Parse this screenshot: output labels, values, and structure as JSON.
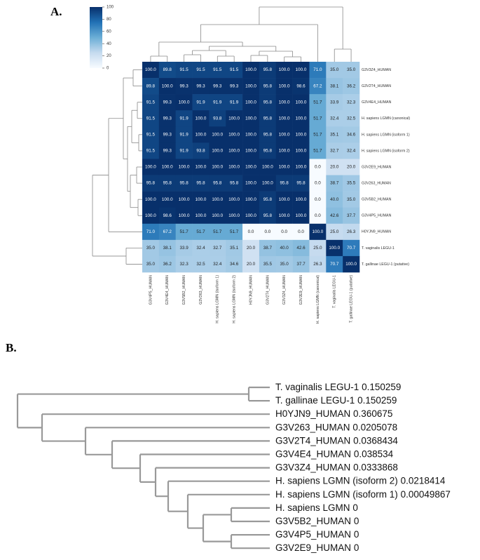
{
  "chart_data": [
    {
      "type": "heatmap",
      "panel": "A.",
      "rows": [
        "G3V3Z4_HUMAN",
        "G3V2T4_HUMAN",
        "G3V4E4_HUMAN",
        "H. sapiens LGMN (canonical)",
        "H. sapiens LGMN (isoform 1)",
        "H. sapiens LGMN (isoform 2)",
        "G3V2E9_HUMAN",
        "G3V263_HUMAN",
        "G3V5B2_HUMAN",
        "G3V4P5_HUMAN",
        "H0YJN9_HUMAN",
        "T. vaginalis LEGU-1",
        "T. gallinae LEGU-1 (putative)"
      ],
      "categories": [
        "G3V4P5_HUMAN",
        "G3V4E4_HUMAN",
        "G3V5B2_HUMAN",
        "G3V263_HUMAN",
        "H. sapiens LGMN (isoform 1)",
        "H. sapiens LGMN (isoform 2)",
        "H0YJN9_HUMAN",
        "G3V2T4_HUMAN",
        "G3V3Z4_HUMAN",
        "G3V2E9_HUMAN",
        "H. sapiens LGMN (canonical)",
        "T. vaginalis LEGU-1",
        "T. gallinae LEGU-1 (putative)"
      ],
      "values": [
        [
          100,
          89.8,
          91.5,
          91.5,
          91.5,
          91.5,
          100,
          95.8,
          100,
          100,
          71,
          35,
          35
        ],
        [
          89.8,
          100,
          99.3,
          99.3,
          99.3,
          99.3,
          100,
          95.8,
          100,
          98.6,
          67.2,
          38.1,
          36.2
        ],
        [
          91.5,
          99.3,
          100,
          91.9,
          91.9,
          91.9,
          100,
          95.8,
          100,
          100,
          51.7,
          33.9,
          32.3
        ],
        [
          91.5,
          99.3,
          91.9,
          100,
          93.8,
          100,
          100,
          95.8,
          100,
          100,
          51.7,
          32.4,
          32.5
        ],
        [
          91.5,
          99.3,
          91.9,
          100,
          100,
          100,
          100,
          95.8,
          100,
          100,
          51.7,
          35.1,
          34.6
        ],
        [
          91.5,
          99.3,
          91.9,
          93.8,
          100,
          100,
          100,
          95.8,
          100,
          100,
          51.7,
          32.7,
          32.4
        ],
        [
          100,
          100,
          100,
          100,
          100,
          100,
          100,
          100,
          100,
          100,
          0,
          20,
          20
        ],
        [
          95.8,
          95.8,
          95.8,
          95.8,
          95.8,
          95.8,
          100,
          100,
          95.8,
          95.8,
          0,
          38.7,
          35.5
        ],
        [
          100,
          100,
          100,
          100,
          100,
          100,
          100,
          95.8,
          100,
          100,
          0,
          40,
          35
        ],
        [
          100,
          98.6,
          100,
          100,
          100,
          100,
          100,
          95.8,
          100,
          100,
          0,
          42.6,
          37.7
        ],
        [
          71,
          67.2,
          51.7,
          51.7,
          51.7,
          51.7,
          0,
          0,
          0,
          0,
          100,
          25,
          26.3
        ],
        [
          35,
          38.1,
          33.9,
          32.4,
          32.7,
          35.1,
          20,
          38.7,
          40,
          42.6,
          25,
          100,
          70.7
        ],
        [
          35,
          36.2,
          32.3,
          32.5,
          32.4,
          34.6,
          20,
          35.5,
          35,
          37.7,
          26.3,
          70.7,
          100
        ]
      ],
      "value_labels": [
        [
          "100.0",
          "89.8",
          "91.5",
          "91.5",
          "91.5",
          "91.5",
          "100.0",
          "95.8",
          "100.0",
          "100.0",
          "71.0",
          "35.0",
          "35.0"
        ],
        [
          "89.8",
          "100.0",
          "99.3",
          "99.3",
          "99.3",
          "99.3",
          "100.0",
          "95.8",
          "100.0",
          "98.6",
          "67.2",
          "38.1",
          "36.2"
        ],
        [
          "91.5",
          "99.3",
          "100.0",
          "91.9",
          "91.9",
          "91.9",
          "100.0",
          "95.8",
          "100.0",
          "100.0",
          "51.7",
          "33.9",
          "32.3"
        ],
        [
          "91.5",
          "99.3",
          "91.9",
          "100.0",
          "93.8",
          "100.0",
          "100.0",
          "95.8",
          "100.0",
          "100.0",
          "51.7",
          "32.4",
          "32.5"
        ],
        [
          "91.5",
          "99.3",
          "91.9",
          "100.0",
          "100.0",
          "100.0",
          "100.0",
          "95.8",
          "100.0",
          "100.0",
          "51.7",
          "35.1",
          "34.6"
        ],
        [
          "91.5",
          "99.3",
          "91.9",
          "93.8",
          "100.0",
          "100.0",
          "100.0",
          "95.8",
          "100.0",
          "100.0",
          "51.7",
          "32.7",
          "32.4"
        ],
        [
          "100.0",
          "100.0",
          "100.0",
          "100.0",
          "100.0",
          "100.0",
          "100.0",
          "100.0",
          "100.0",
          "100.0",
          "0.0",
          "20.0",
          "20.0"
        ],
        [
          "95.8",
          "95.8",
          "95.8",
          "95.8",
          "95.8",
          "95.8",
          "100.0",
          "100.0",
          "95.8",
          "95.8",
          "0.0",
          "38.7",
          "35.5"
        ],
        [
          "100.0",
          "100.0",
          "100.0",
          "100.0",
          "100.0",
          "100.0",
          "100.0",
          "95.8",
          "100.0",
          "100.0",
          "0.0",
          "40.0",
          "35.0"
        ],
        [
          "100.0",
          "98.6",
          "100.0",
          "100.0",
          "100.0",
          "100.0",
          "100.0",
          "95.8",
          "100.0",
          "100.0",
          "0.0",
          "42.6",
          "37.7"
        ],
        [
          "71.0",
          "67.2",
          "51.7",
          "51.7",
          "51.7",
          "51.7",
          "0.0",
          "0.0",
          "0.0",
          "0.0",
          "100.0",
          "25.0",
          "26.3"
        ],
        [
          "35.0",
          "38.1",
          "33.9",
          "32.4",
          "32.7",
          "35.1",
          "20.0",
          "38.7",
          "40.0",
          "42.6",
          "25.0",
          "100.0",
          "70.7"
        ],
        [
          "35.0",
          "36.2",
          "32.3",
          "32.5",
          "32.4",
          "34.6",
          "20.0",
          "35.5",
          "35.0",
          "37.7",
          "26.3",
          "70.7",
          "100.0"
        ]
      ],
      "colorscale": [
        "#f7fbff",
        "#c6dbef",
        "#6baed6",
        "#2171b5",
        "#08306b"
      ],
      "zlim": [
        0,
        100
      ],
      "zticks": [
        0,
        20,
        40,
        60,
        80,
        100
      ]
    },
    {
      "type": "tree",
      "panel": "B.",
      "labels": [
        "T. vaginalis LEGU-1",
        "T. gallinae LEGU-1",
        "H0YJN9_HUMAN",
        "G3V263_HUMAN",
        "G3V2T4_HUMAN",
        "G3V4E4_HUMAN",
        "G3V3Z4_HUMAN",
        "H. sapiens LGMN (isoform 2)",
        "H. sapiens LGMN (isoform 1)",
        "H. sapiens LGMN",
        "G3V5B2_HUMAN",
        "G3V4P5_HUMAN",
        "G3V2E9_HUMAN"
      ],
      "values": [
        0.150259,
        0.150259,
        0.360675,
        0.0205078,
        0.0368434,
        0.038534,
        0.0333868,
        0.0218414,
        0.00049867,
        0,
        0,
        0,
        0
      ],
      "color": "#999999"
    }
  ]
}
